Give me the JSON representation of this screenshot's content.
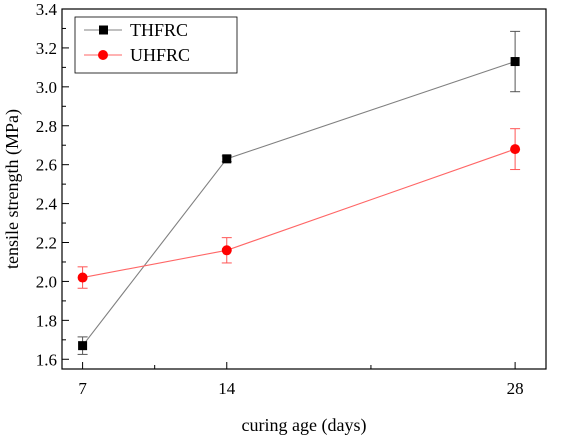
{
  "chart_data": {
    "type": "line",
    "title": "",
    "xlabel": "curing age (days)",
    "ylabel": "tensile strength (MPa)",
    "x": [
      7,
      14,
      28
    ],
    "xlim": [
      6,
      29.5
    ],
    "ylim": [
      1.55,
      3.4
    ],
    "xticks": [
      7,
      14,
      28
    ],
    "xticklabels": [
      "7",
      "14",
      "28"
    ],
    "yticks": [
      1.6,
      1.8,
      2.0,
      2.2,
      2.4,
      2.6,
      2.8,
      3.0,
      3.2,
      3.4
    ],
    "yticklabels": [
      "1.6",
      "1.8",
      "2.0",
      "2.2",
      "2.4",
      "2.6",
      "2.8",
      "3.0",
      "3.2",
      "3.4"
    ],
    "grid": false,
    "legend_position": "top-left",
    "series": [
      {
        "name": "THFRC",
        "color": "#000000",
        "line_color": "#808080",
        "marker": "square",
        "values": [
          1.67,
          2.63,
          3.13
        ],
        "errors": [
          0.045,
          0.015,
          0.155
        ]
      },
      {
        "name": "UHFRC",
        "color": "#ff0000",
        "line_color": "#ff6666",
        "marker": "circle",
        "values": [
          2.02,
          2.16,
          2.68
        ],
        "errors": [
          0.055,
          0.065,
          0.105
        ]
      }
    ]
  }
}
